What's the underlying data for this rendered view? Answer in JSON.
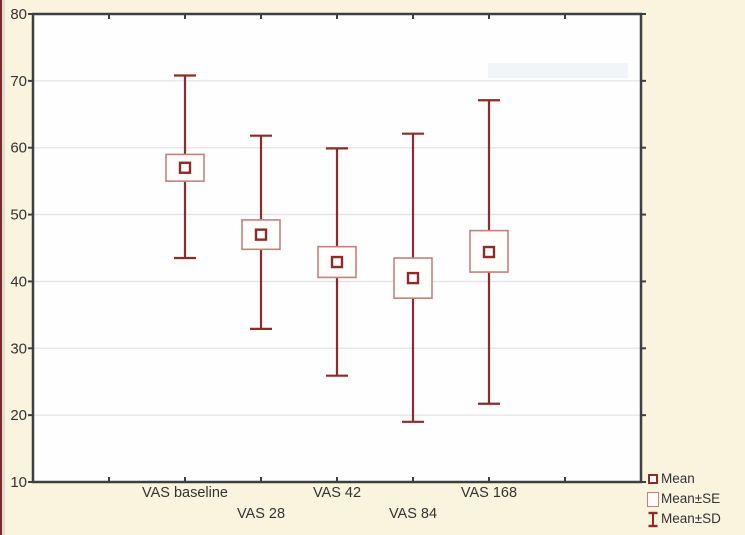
{
  "figure": {
    "background_color": "#faf3de",
    "plot_background": "#fefefe",
    "left_edge_color": "#7c2929"
  },
  "chart_data": {
    "type": "errorbar",
    "title": "",
    "xlabel": "",
    "ylabel": "",
    "categories": [
      "VAS baseline",
      "VAS 28",
      "VAS 42",
      "VAS 84",
      "VAS 168"
    ],
    "ylim": [
      10,
      80
    ],
    "y_ticks": [
      10,
      20,
      30,
      40,
      50,
      60,
      70,
      80
    ],
    "grid": "horizontal",
    "series": [
      {
        "category": "VAS baseline",
        "mean": 57.0,
        "se_low": 55.0,
        "se_high": 59.0,
        "sd_low": 43.5,
        "sd_high": 70.8
      },
      {
        "category": "VAS 28",
        "mean": 47.0,
        "se_low": 44.8,
        "se_high": 49.2,
        "sd_low": 32.9,
        "sd_high": 61.8
      },
      {
        "category": "VAS 42",
        "mean": 42.9,
        "se_low": 40.6,
        "se_high": 45.2,
        "sd_low": 25.9,
        "sd_high": 59.9
      },
      {
        "category": "VAS 84",
        "mean": 40.5,
        "se_low": 37.5,
        "se_high": 43.5,
        "sd_low": 19.0,
        "sd_high": 62.1
      },
      {
        "category": "VAS 168",
        "mean": 44.4,
        "se_low": 41.4,
        "se_high": 47.6,
        "sd_low": 21.7,
        "sd_high": 67.1
      }
    ],
    "legend": {
      "position": "bottom-right",
      "items": [
        {
          "marker": "mean-square-icon",
          "label": "Mean"
        },
        {
          "marker": "se-box-icon",
          "label": "Mean±SE"
        },
        {
          "marker": "sd-whisker-icon",
          "label": "Mean±SD"
        }
      ]
    },
    "colors": {
      "dark_red": "#8e2a2a",
      "light_red": "#c4827e",
      "grid": "#e4e4e4",
      "frame": "#3f3f3f",
      "text": "#333333",
      "watermark": "#eef2f7"
    }
  }
}
